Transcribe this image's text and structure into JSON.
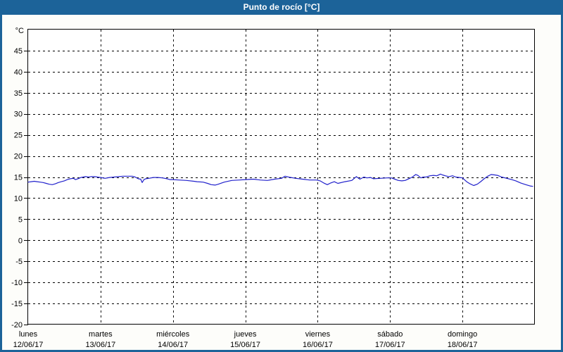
{
  "window": {
    "title": "Punto de rocío [°C]"
  },
  "colors": {
    "titlebar_bg": "#1c6399",
    "frame": "#1c6399",
    "title_text": "#ffffff",
    "page_bg": "#fdfdfa",
    "plot_bg": "#ffffff",
    "grid": "#000000",
    "axis": "#000000",
    "label": "#000000",
    "line": "#2121cc"
  },
  "chart_data": {
    "type": "line",
    "title": "Punto de rocío [°C]",
    "y_axis_unit": "°C",
    "ylim": [
      -20,
      50
    ],
    "yticks": [
      45,
      40,
      35,
      30,
      25,
      20,
      15,
      10,
      5,
      0,
      -5,
      -10,
      -15,
      -20
    ],
    "grid": "dashed",
    "legend": "none",
    "x_range_hours": [
      0,
      168
    ],
    "x_axis_days": [
      {
        "weekday": "lunes",
        "date": "12/06/17"
      },
      {
        "weekday": "martes",
        "date": "13/06/17"
      },
      {
        "weekday": "miércoles",
        "date": "14/06/17"
      },
      {
        "weekday": "jueves",
        "date": "15/06/17"
      },
      {
        "weekday": "viernes",
        "date": "16/06/17"
      },
      {
        "weekday": "sábado",
        "date": "17/06/17"
      },
      {
        "weekday": "domingo",
        "date": "18/06/17"
      }
    ],
    "series": [
      {
        "name": "Punto de rocío [°C]",
        "color": "#2121cc",
        "points": [
          [
            0,
            13.8
          ],
          [
            1,
            13.9
          ],
          [
            2,
            14.0
          ],
          [
            3,
            13.9
          ],
          [
            4,
            13.8
          ],
          [
            5,
            13.7
          ],
          [
            6,
            13.5
          ],
          [
            7,
            13.3
          ],
          [
            8,
            13.2
          ],
          [
            9,
            13.4
          ],
          [
            10,
            13.7
          ],
          [
            11,
            13.9
          ],
          [
            12,
            14.1
          ],
          [
            13,
            14.4
          ],
          [
            14,
            14.6
          ],
          [
            15,
            14.7
          ],
          [
            15.7,
            14.4
          ],
          [
            16.5,
            14.6
          ],
          [
            17.5,
            14.9
          ],
          [
            19,
            15.1
          ],
          [
            20,
            15.0
          ],
          [
            21,
            15.1
          ],
          [
            22,
            15.1
          ],
          [
            23,
            15.0
          ],
          [
            24,
            14.9
          ],
          [
            25.5,
            14.7
          ],
          [
            27,
            14.9
          ],
          [
            28.5,
            15.0
          ],
          [
            30,
            15.1
          ],
          [
            31.5,
            15.2
          ],
          [
            33,
            15.2
          ],
          [
            34.5,
            15.2
          ],
          [
            35.5,
            15.0
          ],
          [
            36.5,
            14.6
          ],
          [
            37.3,
            14.5
          ],
          [
            37.8,
            13.7
          ],
          [
            38.4,
            14.4
          ],
          [
            39,
            14.6
          ],
          [
            40,
            14.7
          ],
          [
            41.5,
            14.9
          ],
          [
            43,
            14.9
          ],
          [
            44.5,
            14.8
          ],
          [
            46,
            14.6
          ],
          [
            47,
            14.4
          ],
          [
            48,
            14.4
          ],
          [
            50,
            14.3
          ],
          [
            52.5,
            14.2
          ],
          [
            55,
            14.0
          ],
          [
            56,
            13.9
          ],
          [
            58,
            13.8
          ],
          [
            59.5,
            13.5
          ],
          [
            60.7,
            13.2
          ],
          [
            62,
            13.1
          ],
          [
            63,
            13.3
          ],
          [
            65,
            13.8
          ],
          [
            67.5,
            14.2
          ],
          [
            70,
            14.3
          ],
          [
            72,
            14.4
          ],
          [
            74.7,
            14.5
          ],
          [
            77,
            14.3
          ],
          [
            79.3,
            14.2
          ],
          [
            81.7,
            14.5
          ],
          [
            84,
            14.7
          ],
          [
            85.2,
            15.2
          ],
          [
            86.3,
            15.0
          ],
          [
            88.7,
            14.7
          ],
          [
            91,
            14.5
          ],
          [
            93.3,
            14.3
          ],
          [
            95.6,
            14.3
          ],
          [
            96.8,
            14.1
          ],
          [
            98,
            13.6
          ],
          [
            99.2,
            13.2
          ],
          [
            100.3,
            13.6
          ],
          [
            101.5,
            13.9
          ],
          [
            102.7,
            13.5
          ],
          [
            105,
            13.9
          ],
          [
            107.3,
            14.2
          ],
          [
            108.8,
            15.1
          ],
          [
            110,
            14.5
          ],
          [
            111.3,
            15.0
          ],
          [
            112.3,
            14.8
          ],
          [
            113.5,
            14.9
          ],
          [
            114.5,
            14.6
          ],
          [
            116.7,
            14.7
          ],
          [
            119,
            14.8
          ],
          [
            120.4,
            14.8
          ],
          [
            121.6,
            14.5
          ],
          [
            122.7,
            14.2
          ],
          [
            123.9,
            14.1
          ],
          [
            125,
            14.2
          ],
          [
            126.2,
            14.6
          ],
          [
            127.4,
            15.0
          ],
          [
            128.5,
            15.6
          ],
          [
            129.2,
            15.4
          ],
          [
            130.2,
            14.8
          ],
          [
            130.9,
            15.0
          ],
          [
            132,
            15.0
          ],
          [
            133.2,
            15.3
          ],
          [
            134.4,
            15.4
          ],
          [
            135.5,
            15.3
          ],
          [
            136.7,
            15.7
          ],
          [
            137.4,
            15.5
          ],
          [
            138.3,
            15.3
          ],
          [
            139.5,
            15.1
          ],
          [
            140.7,
            15.3
          ],
          [
            141.8,
            15.0
          ],
          [
            143,
            14.9
          ],
          [
            144,
            14.8
          ],
          [
            145.4,
            13.9
          ],
          [
            146.5,
            13.4
          ],
          [
            147.7,
            13.0
          ],
          [
            148.9,
            13.3
          ],
          [
            150,
            13.9
          ],
          [
            151.2,
            14.6
          ],
          [
            152.4,
            15.2
          ],
          [
            153.5,
            15.6
          ],
          [
            154.7,
            15.5
          ],
          [
            155.6,
            15.4
          ],
          [
            157,
            15.0
          ],
          [
            158.7,
            14.7
          ],
          [
            160.3,
            14.4
          ],
          [
            161.7,
            14.1
          ],
          [
            163.3,
            13.6
          ],
          [
            165,
            13.2
          ],
          [
            166.4,
            12.9
          ],
          [
            167.3,
            12.8
          ]
        ]
      }
    ]
  }
}
